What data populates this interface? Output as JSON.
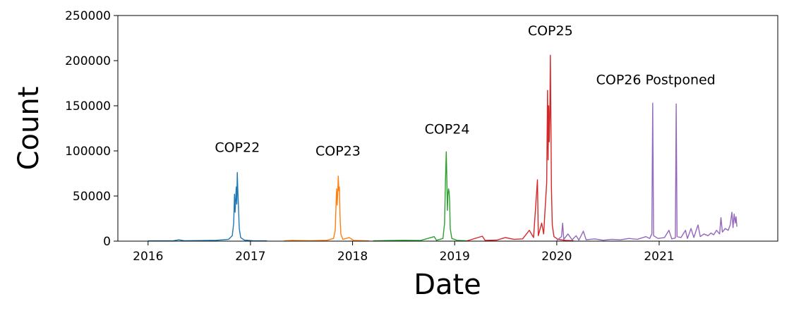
{
  "chart_data": {
    "type": "line",
    "title": "",
    "xlabel": "Date",
    "ylabel": "Count",
    "ylim": [
      0,
      250000
    ],
    "xlim": [
      "2015-09-15",
      "2022-03-01"
    ],
    "grid": false,
    "y_ticks": [
      {
        "value": 0,
        "label": "0"
      },
      {
        "value": 50000,
        "label": "50000"
      },
      {
        "value": 100000,
        "label": "100000"
      },
      {
        "value": 150000,
        "label": "150000"
      },
      {
        "value": 200000,
        "label": "200000"
      },
      {
        "value": 250000,
        "label": "250000"
      }
    ],
    "x_ticks": [
      {
        "value": "2016-01-01",
        "label": "2016"
      },
      {
        "value": "2017-01-01",
        "label": "2017"
      },
      {
        "value": "2018-01-01",
        "label": "2018"
      },
      {
        "value": "2019-01-01",
        "label": "2019"
      },
      {
        "value": "2020-01-01",
        "label": "2020"
      },
      {
        "value": "2021-01-01",
        "label": "2021"
      }
    ],
    "series": [
      {
        "color": "#1f77b4",
        "points": [
          [
            "2016-01-01",
            300
          ],
          [
            "2016-04-01",
            500
          ],
          [
            "2016-04-20",
            1500
          ],
          [
            "2016-05-10",
            400
          ],
          [
            "2016-07-01",
            600
          ],
          [
            "2016-09-01",
            900
          ],
          [
            "2016-10-15",
            2000
          ],
          [
            "2016-10-28",
            6000
          ],
          [
            "2016-11-02",
            20000
          ],
          [
            "2016-11-05",
            52000
          ],
          [
            "2016-11-07",
            32000
          ],
          [
            "2016-11-09",
            45000
          ],
          [
            "2016-11-11",
            60000
          ],
          [
            "2016-11-13",
            41000
          ],
          [
            "2016-11-15",
            76000
          ],
          [
            "2016-11-17",
            56000
          ],
          [
            "2016-11-19",
            40000
          ],
          [
            "2016-11-22",
            14000
          ],
          [
            "2016-11-27",
            4000
          ],
          [
            "2016-12-10",
            1200
          ],
          [
            "2017-01-10",
            500
          ],
          [
            "2017-03-01",
            300
          ]
        ]
      },
      {
        "color": "#ff7f0e",
        "points": [
          [
            "2017-05-01",
            300
          ],
          [
            "2017-06-01",
            800
          ],
          [
            "2017-08-01",
            500
          ],
          [
            "2017-10-01",
            900
          ],
          [
            "2017-10-25",
            3000
          ],
          [
            "2017-10-31",
            12000
          ],
          [
            "2017-11-03",
            42000
          ],
          [
            "2017-11-05",
            58000
          ],
          [
            "2017-11-07",
            40000
          ],
          [
            "2017-11-09",
            52000
          ],
          [
            "2017-11-11",
            72000
          ],
          [
            "2017-11-13",
            56000
          ],
          [
            "2017-11-15",
            60000
          ],
          [
            "2017-11-17",
            30000
          ],
          [
            "2017-11-20",
            8000
          ],
          [
            "2017-11-27",
            2000
          ],
          [
            "2017-12-20",
            4000
          ],
          [
            "2018-01-05",
            800
          ],
          [
            "2018-03-01",
            300
          ]
        ]
      },
      {
        "color": "#2ca02c",
        "points": [
          [
            "2018-03-15",
            300
          ],
          [
            "2018-05-01",
            600
          ],
          [
            "2018-07-01",
            900
          ],
          [
            "2018-09-01",
            700
          ],
          [
            "2018-10-20",
            5000
          ],
          [
            "2018-10-28",
            900
          ],
          [
            "2018-11-20",
            3000
          ],
          [
            "2018-11-26",
            20000
          ],
          [
            "2018-11-29",
            65000
          ],
          [
            "2018-12-02",
            99000
          ],
          [
            "2018-12-04",
            70000
          ],
          [
            "2018-12-06",
            34000
          ],
          [
            "2018-12-08",
            52000
          ],
          [
            "2018-12-10",
            58000
          ],
          [
            "2018-12-12",
            55000
          ],
          [
            "2018-12-14",
            44000
          ],
          [
            "2018-12-16",
            14000
          ],
          [
            "2018-12-22",
            3000
          ],
          [
            "2019-01-10",
            800
          ],
          [
            "2019-02-15",
            300
          ]
        ]
      },
      {
        "color": "#d62728",
        "points": [
          [
            "2019-02-15",
            400
          ],
          [
            "2019-04-10",
            5500
          ],
          [
            "2019-04-20",
            800
          ],
          [
            "2019-06-01",
            1200
          ],
          [
            "2019-07-01",
            4000
          ],
          [
            "2019-08-01",
            2000
          ],
          [
            "2019-09-01",
            2500
          ],
          [
            "2019-09-25",
            12000
          ],
          [
            "2019-10-10",
            4000
          ],
          [
            "2019-10-24",
            68000
          ],
          [
            "2019-10-27",
            6000
          ],
          [
            "2019-11-08",
            20000
          ],
          [
            "2019-11-15",
            8000
          ],
          [
            "2019-11-26",
            65000
          ],
          [
            "2019-11-29",
            167000
          ],
          [
            "2019-12-01",
            90000
          ],
          [
            "2019-12-03",
            150000
          ],
          [
            "2019-12-05",
            110000
          ],
          [
            "2019-12-07",
            137000
          ],
          [
            "2019-12-09",
            206000
          ],
          [
            "2019-12-11",
            132000
          ],
          [
            "2019-12-13",
            60000
          ],
          [
            "2019-12-16",
            18000
          ],
          [
            "2019-12-22",
            5000
          ],
          [
            "2020-01-05",
            2000
          ],
          [
            "2020-02-01",
            800
          ],
          [
            "2020-03-01",
            400
          ]
        ]
      },
      {
        "color": "#9467bd",
        "points": [
          [
            "2020-01-01",
            800
          ],
          [
            "2020-01-18",
            5000
          ],
          [
            "2020-01-22",
            20000
          ],
          [
            "2020-01-26",
            2000
          ],
          [
            "2020-02-10",
            8000
          ],
          [
            "2020-02-25",
            1500
          ],
          [
            "2020-03-10",
            6000
          ],
          [
            "2020-03-20",
            1200
          ],
          [
            "2020-04-05",
            11000
          ],
          [
            "2020-04-15",
            1500
          ],
          [
            "2020-05-15",
            2500
          ],
          [
            "2020-06-15",
            1000
          ],
          [
            "2020-07-15",
            2000
          ],
          [
            "2020-08-15",
            1500
          ],
          [
            "2020-09-15",
            3000
          ],
          [
            "2020-10-15",
            2000
          ],
          [
            "2020-11-15",
            5000
          ],
          [
            "2020-11-28",
            3000
          ],
          [
            "2020-12-06",
            8000
          ],
          [
            "2020-12-09",
            153000
          ],
          [
            "2020-12-12",
            6000
          ],
          [
            "2020-12-28",
            3000
          ],
          [
            "2021-01-20",
            4000
          ],
          [
            "2021-02-05",
            12000
          ],
          [
            "2021-02-15",
            2500
          ],
          [
            "2021-02-28",
            3500
          ],
          [
            "2021-03-03",
            152000
          ],
          [
            "2021-03-06",
            5000
          ],
          [
            "2021-03-20",
            4000
          ],
          [
            "2021-04-05",
            12000
          ],
          [
            "2021-04-12",
            3000
          ],
          [
            "2021-04-25",
            14000
          ],
          [
            "2021-05-05",
            4000
          ],
          [
            "2021-05-20",
            18000
          ],
          [
            "2021-05-28",
            5000
          ],
          [
            "2021-06-10",
            8000
          ],
          [
            "2021-06-25",
            6000
          ],
          [
            "2021-07-05",
            9000
          ],
          [
            "2021-07-15",
            7000
          ],
          [
            "2021-07-25",
            12000
          ],
          [
            "2021-08-05",
            8000
          ],
          [
            "2021-08-10",
            26000
          ],
          [
            "2021-08-15",
            10000
          ],
          [
            "2021-08-25",
            14000
          ],
          [
            "2021-09-05",
            12000
          ],
          [
            "2021-09-12",
            18000
          ],
          [
            "2021-09-18",
            32000
          ],
          [
            "2021-09-22",
            15000
          ],
          [
            "2021-09-26",
            30000
          ],
          [
            "2021-09-30",
            20000
          ],
          [
            "2021-10-03",
            27000
          ],
          [
            "2021-10-06",
            16000
          ]
        ]
      }
    ],
    "annotations": [
      {
        "text": "COP22",
        "x": "2016-11-15",
        "y": 99000
      },
      {
        "text": "COP23",
        "x": "2017-11-10",
        "y": 95000
      },
      {
        "text": "COP24",
        "x": "2018-12-05",
        "y": 119000
      },
      {
        "text": "COP25",
        "x": "2019-12-09",
        "y": 228000
      },
      {
        "text": "COP26 Postponed",
        "x": "2020-12-20",
        "y": 174000
      }
    ]
  }
}
